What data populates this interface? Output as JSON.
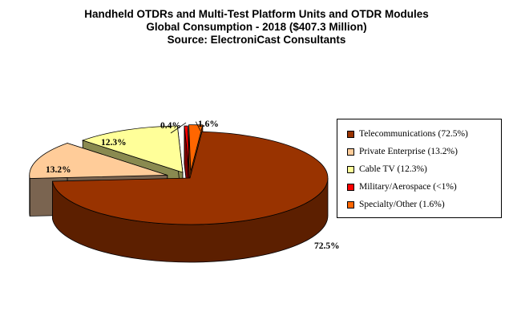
{
  "chart_data": {
    "type": "pie",
    "title": "Handheld OTDRs and Multi-Test Platform Units and OTDR Modules",
    "subtitle": "Global Consumption - 2018 ($407.3 Million)",
    "source": "Source: ElectroniCast Consultants",
    "legend_position": "right",
    "slices": [
      {
        "name": "Telecommunications (72.5%)",
        "value": 72.5,
        "label": "72.5%",
        "color": "#993300",
        "side_color": "#5c1f00",
        "exploded": false
      },
      {
        "name": "Private Enterprise (13.2%)",
        "value": 13.2,
        "label": "13.2%",
        "color": "#ffcc99",
        "side_color": "#7a6450",
        "exploded": true
      },
      {
        "name": "Cable TV (12.3%)",
        "value": 12.3,
        "label": "12.3%",
        "color": "#ffff99",
        "side_color": "#8a8a50",
        "exploded": true
      },
      {
        "name": "Military/Aerospace (<1%)",
        "value": 0.4,
        "label": "0.4%",
        "color": "#ff0000",
        "side_color": "#800000",
        "exploded": true
      },
      {
        "name": "Specialty/Other (1.6%)",
        "value": 1.6,
        "label": "1.6%",
        "color": "#ff6600",
        "side_color": "#a04000",
        "exploded": true
      }
    ]
  }
}
